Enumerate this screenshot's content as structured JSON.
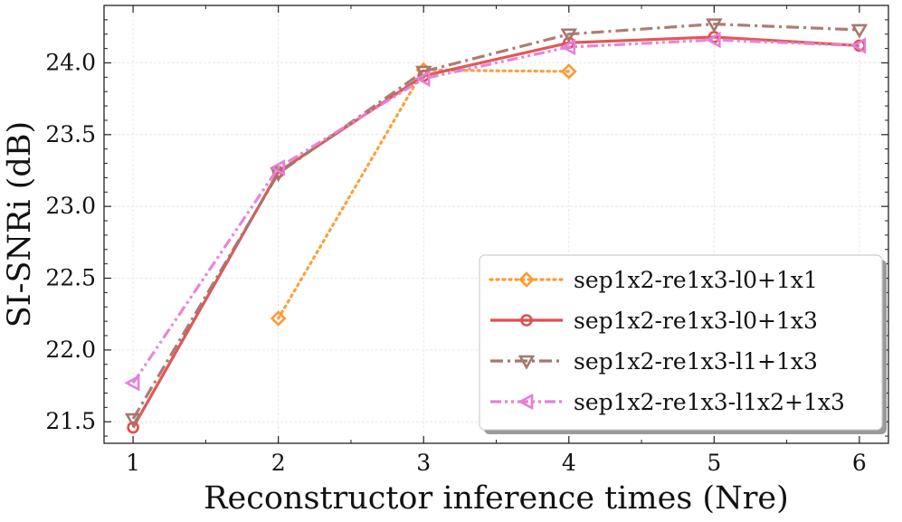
{
  "chart_data": {
    "type": "line",
    "xlabel": "Reconstructor inference times (Nre)",
    "ylabel": "SI-SNRi (dB)",
    "xlim": [
      0.8,
      6.2
    ],
    "ylim": [
      21.35,
      24.4
    ],
    "xticks": [
      1,
      2,
      3,
      4,
      5,
      6
    ],
    "yticks": [
      21.5,
      22.0,
      22.5,
      23.0,
      23.5,
      24.0
    ],
    "grid": true,
    "legend_position": "lower-right",
    "series": [
      {
        "name": "sep1x2-re1x3-l0+1x1",
        "x": [
          2,
          3,
          4
        ],
        "y": [
          22.22,
          23.95,
          23.94
        ],
        "color": "#ff9933",
        "line_style": "dotted",
        "marker": "diamond"
      },
      {
        "name": "sep1x2-re1x3-l0+1x3",
        "x": [
          1,
          2,
          3,
          4,
          5,
          6
        ],
        "y": [
          21.46,
          23.24,
          23.91,
          24.14,
          24.18,
          24.12
        ],
        "color": "#de4f50",
        "line_style": "solid",
        "marker": "circle"
      },
      {
        "name": "sep1x2-re1x3-l1+1x3",
        "x": [
          1,
          2,
          3,
          4,
          5,
          6
        ],
        "y": [
          21.52,
          23.23,
          23.94,
          24.2,
          24.27,
          24.23
        ],
        "color": "#a6766d",
        "line_style": "dashdot",
        "marker": "triangle-down"
      },
      {
        "name": "sep1x2-re1x3-l1x2+1x3",
        "x": [
          1,
          2,
          3,
          4,
          5,
          6
        ],
        "y": [
          21.77,
          23.27,
          23.89,
          24.11,
          24.16,
          24.12
        ],
        "color": "#e67fd6",
        "line_style": "dashdotdot",
        "marker": "triangle-left"
      }
    ]
  }
}
